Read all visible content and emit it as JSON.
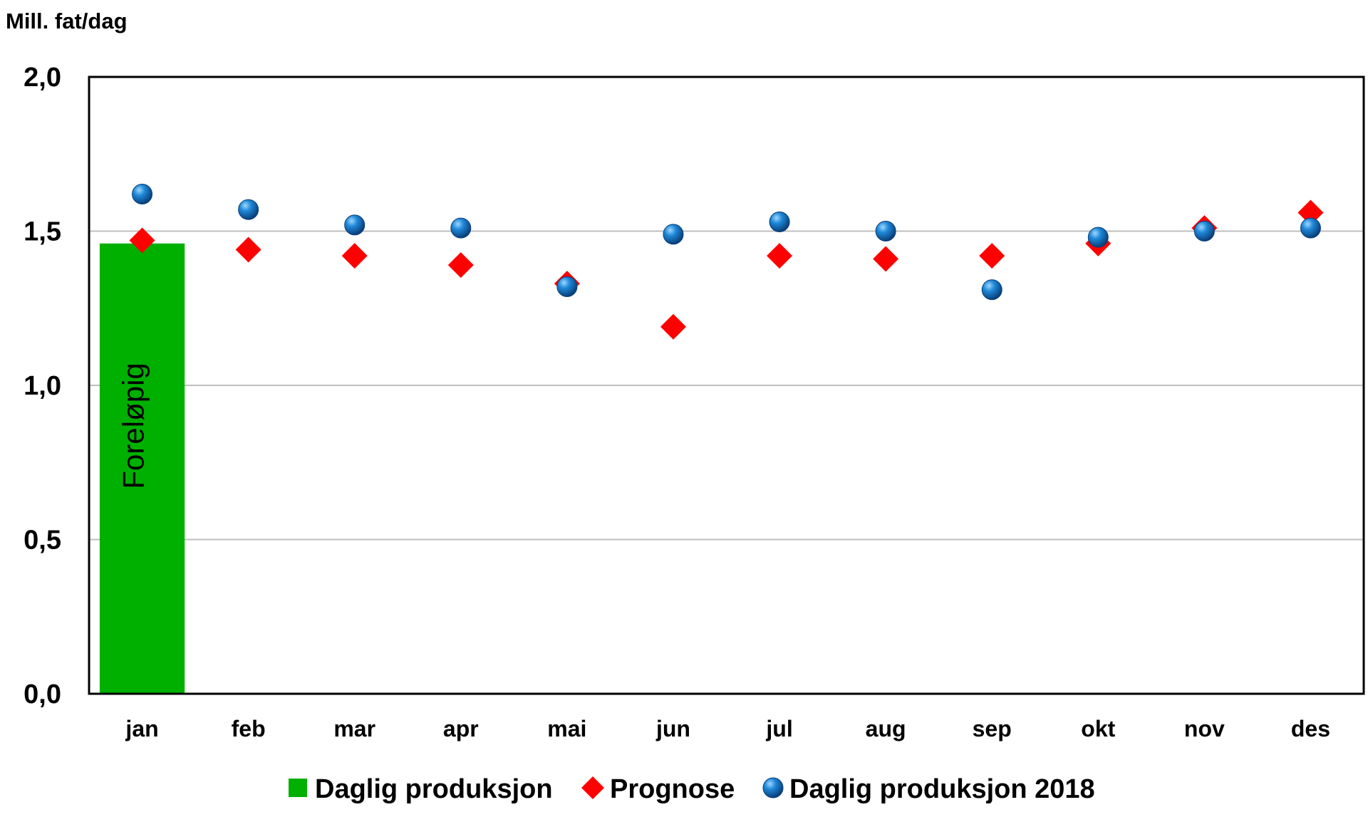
{
  "chart_data": {
    "type": "bar",
    "title": "",
    "ylabel": "Mill. fat/dag",
    "xlabel": "",
    "ylim": [
      0,
      2.0
    ],
    "yticks": [
      0.0,
      0.5,
      1.0,
      1.5,
      2.0
    ],
    "ytick_labels": [
      "0,0",
      "0,5",
      "1,0",
      "1,5",
      "2,0"
    ],
    "categories": [
      "jan",
      "feb",
      "mar",
      "apr",
      "mai",
      "jun",
      "jul",
      "aug",
      "sep",
      "okt",
      "nov",
      "des"
    ],
    "grid": true,
    "legend_position": "bottom",
    "series": [
      {
        "name": "Daglig produksjon",
        "kind": "bar",
        "color": "#00B000",
        "values": [
          1.46,
          null,
          null,
          null,
          null,
          null,
          null,
          null,
          null,
          null,
          null,
          null
        ],
        "annotation": "Foreløpig"
      },
      {
        "name": "Prognose",
        "kind": "diamond",
        "color": "#FF0000",
        "values": [
          1.47,
          1.44,
          1.42,
          1.39,
          1.33,
          1.19,
          1.42,
          1.41,
          1.42,
          1.46,
          1.51,
          1.56
        ]
      },
      {
        "name": "Daglig produksjon 2018",
        "kind": "circle",
        "color": "#1E88D8",
        "values": [
          1.62,
          1.57,
          1.52,
          1.51,
          1.32,
          1.49,
          1.53,
          1.5,
          1.31,
          1.48,
          1.5,
          1.51
        ]
      }
    ]
  }
}
